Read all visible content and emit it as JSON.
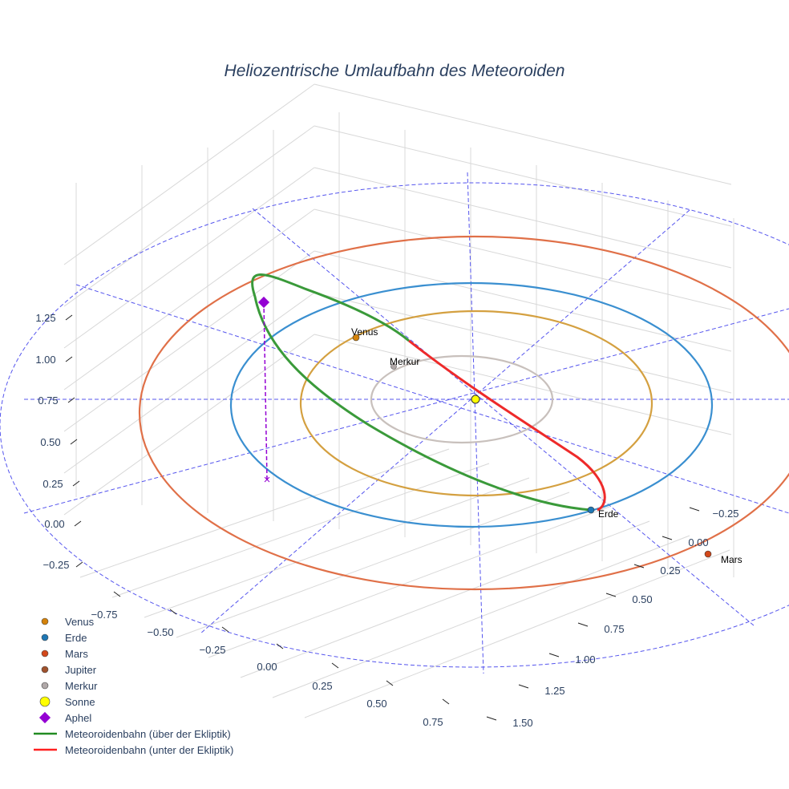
{
  "chart_data": {
    "type": "scatter3d",
    "title": "Heliozentrische Umlaufbahn des Meteoroiden",
    "x_ticks": [
      "−0.75",
      "−0.50",
      "−0.25",
      "0.00",
      "0.25",
      "0.50",
      "0.75"
    ],
    "y_ticks": [
      "−0.25",
      "0.00",
      "0.25",
      "0.50",
      "0.75",
      "1.00",
      "1.25",
      "1.50"
    ],
    "z_ticks": [
      "1.25",
      "1.00",
      "0.75",
      "0.50",
      "0.25",
      "0.00",
      "−0.25"
    ],
    "point_labels": {
      "venus": "Venus",
      "merkur": "Merkur",
      "erde": "Erde",
      "mars": "Mars"
    },
    "legend": [
      {
        "name": "Venus",
        "symbol": "circle",
        "color": "#d4820a"
      },
      {
        "name": "Erde",
        "symbol": "circle",
        "color": "#1f77b4"
      },
      {
        "name": "Mars",
        "symbol": "circle",
        "color": "#d2481a"
      },
      {
        "name": "Jupiter",
        "symbol": "circle",
        "color": "#a0522d"
      },
      {
        "name": "Merkur",
        "symbol": "circle",
        "color": "#b0a8a8"
      },
      {
        "name": "Sonne",
        "symbol": "circle",
        "color": "#ffff00"
      },
      {
        "name": "Aphel",
        "symbol": "diamond",
        "color": "#9400d3"
      },
      {
        "name": "Meteoroidenbahn (über der Ekliptik)",
        "symbol": "line",
        "color": "#228b22"
      },
      {
        "name": "Meteoroidenbahn (unter der Ekliptik)",
        "symbol": "line",
        "color": "#ff2020"
      }
    ],
    "orbit_colors": {
      "merkur": "#c8c0bc",
      "venus": "#d4a040",
      "erde": "#3a8fd0",
      "mars": "#e07048",
      "reference": "#5555ee"
    }
  }
}
